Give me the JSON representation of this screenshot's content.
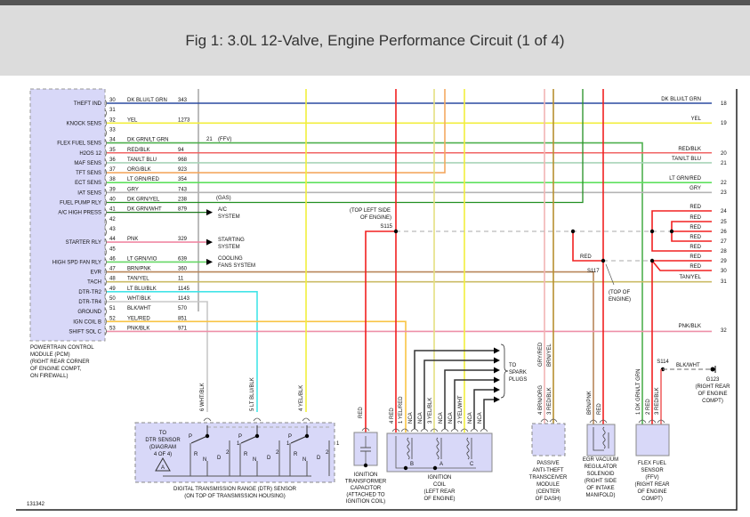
{
  "header": {
    "title": "Fig 1: 3.0L 12-Valve, Engine Performance Circuit (1 of 4)"
  },
  "figure_id": "131342",
  "pcm": {
    "name_lines": [
      "POWERTRAIN CONTROL",
      "MODULE (PCM)",
      "(RIGHT REAR CORNER",
      "OF ENGINE COMPT,",
      "ON FIREWALL)"
    ],
    "pins": [
      {
        "pin": "30",
        "function": "THEFT IND",
        "wire": "DK BLU/LT GRN",
        "circuit": "343",
        "hex": "#2a4aa0"
      },
      {
        "pin": "31",
        "function": "",
        "wire": "",
        "circuit": ""
      },
      {
        "pin": "32",
        "function": "KNOCK SENS",
        "wire": "YEL",
        "circuit": "1273",
        "hex": "#f2ee3c"
      },
      {
        "pin": "33",
        "function": "",
        "wire": "",
        "circuit": ""
      },
      {
        "pin": "34",
        "function": "FLEX FUEL SENS",
        "wire": "DK GRN/LT GRN",
        "circuit": "",
        "hex": "#4fb04f"
      },
      {
        "pin": "35",
        "function": "H2OS 12",
        "wire": "RED/BLK",
        "circuit": "94",
        "hex": "#f06464"
      },
      {
        "pin": "36",
        "function": "MAF SENS",
        "wire": "TAN/LT BLU",
        "circuit": "968",
        "hex": "#a8d4b8"
      },
      {
        "pin": "37",
        "function": "TFT SENS",
        "wire": "ORG/BLK",
        "circuit": "923",
        "hex": "#f4a860"
      },
      {
        "pin": "38",
        "function": "ECT SENS",
        "wire": "LT GRN/RED",
        "circuit": "354",
        "hex": "#5ee05e"
      },
      {
        "pin": "39",
        "function": "IAT SENS",
        "wire": "GRY",
        "circuit": "743",
        "hex": "#b4b4b4"
      },
      {
        "pin": "40",
        "function": "FUEL PUMP RLY",
        "wire": "DK GRN/YEL",
        "circuit": "238",
        "hex": "#229022"
      },
      {
        "pin": "41",
        "function": "A/C HIGH PRESS",
        "wire": "DK GRN/WHT",
        "circuit": "879",
        "hex": "#1e7a1e"
      },
      {
        "pin": "42",
        "function": "",
        "wire": "",
        "circuit": ""
      },
      {
        "pin": "43",
        "function": "",
        "wire": "",
        "circuit": ""
      },
      {
        "pin": "44",
        "function": "STARTER RLY",
        "wire": "PNK",
        "circuit": "329",
        "hex": "#f088a4"
      },
      {
        "pin": "45",
        "function": "",
        "wire": "",
        "circuit": ""
      },
      {
        "pin": "46",
        "function": "HIGH SPD FAN RLY",
        "wire": "LT GRN/VIO",
        "circuit": "639",
        "hex": "#66d866"
      },
      {
        "pin": "47",
        "function": "EVR",
        "wire": "BRN/PNK",
        "circuit": "360",
        "hex": "#b8865a"
      },
      {
        "pin": "48",
        "function": "TACH",
        "wire": "TAN/YEL",
        "circuit": "11",
        "hex": "#cbbb66"
      },
      {
        "pin": "49",
        "function": "DTR-TR2",
        "wire": "LT BLU/BLK",
        "circuit": "1145",
        "hex": "#44e4e8"
      },
      {
        "pin": "50",
        "function": "DTR-TR4",
        "wire": "WHT/BLK",
        "circuit": "1143",
        "hex": "#c8c8c8"
      },
      {
        "pin": "51",
        "function": "GROUND",
        "wire": "BLK/WHT",
        "circuit": "570"
      },
      {
        "pin": "52",
        "function": "IGN COIL B",
        "wire": "YEL/RED",
        "circuit": "851",
        "hex": "#f8c444"
      },
      {
        "pin": "53",
        "function": "SHIFT SOL C",
        "wire": "PNK/BLK",
        "circuit": "971",
        "hex": "#ee90a8"
      }
    ],
    "annotations": {
      "ffv_num": "21",
      "ffv": "(FFV)",
      "gas": "(GAS)"
    },
    "destinations": {
      "ac": [
        "A/C",
        "SYSTEM"
      ],
      "starting": [
        "STARTING",
        "SYSTEM"
      ],
      "cooling": [
        "COOLING",
        "FANS SYSTEM"
      ]
    }
  },
  "right_terminals": [
    {
      "num": "18",
      "wire": "DK BLU/LT GRN"
    },
    {
      "num": "19",
      "wire": "YEL"
    },
    {
      "num": "20",
      "wire": "RED/BLK"
    },
    {
      "num": "21",
      "wire": "TAN/LT BLU"
    },
    {
      "num": "22",
      "wire": "LT GRN/RED"
    },
    {
      "num": "23",
      "wire": "GRY"
    },
    {
      "num": "24",
      "wire": "RED"
    },
    {
      "num": "25",
      "wire": "RED"
    },
    {
      "num": "26",
      "wire": "RED"
    },
    {
      "num": "27",
      "wire": "RED"
    },
    {
      "num": "28",
      "wire": "RED"
    },
    {
      "num": "29",
      "wire": "RED"
    },
    {
      "num": "30",
      "wire": "RED"
    },
    {
      "num": "31",
      "wire": "TAN/YEL"
    },
    {
      "num": "32",
      "wire": "PNK/BLK"
    }
  ],
  "splices": {
    "s115": {
      "id": "S115",
      "location": [
        "(TOP LEFT SIDE",
        "OF ENGINE)"
      ]
    },
    "s117": {
      "id": "S117",
      "wire": "RED",
      "location": [
        "(TOP OF",
        "ENGINE)"
      ]
    },
    "s114": {
      "id": "S114",
      "wire": "BLK/WHT"
    },
    "g123": {
      "id": "G123",
      "location": [
        "(RIGHT REAR",
        "OF ENGINE",
        "COMPT)"
      ]
    }
  },
  "dtr": {
    "wires": [
      "6  WHT/BLK",
      "5  LT BLU/BLK",
      "4  YEL/BLK"
    ],
    "inner": [
      "TO",
      "DTR SENSOR",
      "(DIAGRAM",
      "4 OF 4)"
    ],
    "ref": "A",
    "positions": [
      "P",
      "R",
      "N",
      "D",
      "2",
      "1"
    ],
    "name_lines": [
      "DIGITAL TRANSMISSION RANGE (DTR) SENSOR",
      "(ON TOP OF TRANSMISSION HOUSING)"
    ]
  },
  "capacitor": {
    "wire": "RED",
    "name_lines": [
      "IGNITION",
      "TRANSFORMER",
      "CAPACITOR",
      "(ATTACHED TO",
      "IGNITION COIL)"
    ]
  },
  "coil": {
    "wires": [
      "4  RED",
      "1  YEL/RED",
      "NCA",
      "NCA",
      "3  YEL/BLK",
      "NCA",
      "NCA",
      "2  YEL/WHT",
      "NCA",
      "NCA"
    ],
    "coils": [
      "B",
      "A",
      "C"
    ],
    "name_lines": [
      "IGNITION",
      "COIL",
      "(LEFT REAR",
      "OF ENGINE)"
    ],
    "spark": [
      "TO",
      "SPARK",
      "PLUGS"
    ]
  },
  "pats": {
    "wires_upper": [
      "GRY/RED",
      "BRN/YEL"
    ],
    "wires_lower": [
      "4  BRN/ORG",
      "3  RED/BLK"
    ],
    "name_lines": [
      "PASSIVE",
      "ANTI-THEFT",
      "TRANSCEIVER",
      "MODULE",
      "(CENTER",
      "OF DASH)"
    ]
  },
  "egr": {
    "wires": [
      "BRN/PNK",
      "RED"
    ],
    "name_lines": [
      "EGR VACUUM",
      "REGULATOR",
      "SOLENOID",
      "(RIGHT SIDE",
      "OF INTAKE",
      "MANIFOLD)"
    ]
  },
  "ffv": {
    "wires": [
      "1  DK GRN/LT GRN",
      "2  RED",
      "3  RED/BLK"
    ],
    "name_lines": [
      "FLEX FUEL",
      "SENSOR",
      "(FFV)",
      "(RIGHT REAR",
      "OF ENGINE",
      "COMPT)"
    ]
  },
  "colors": {
    "red": "#f22020",
    "component_fill": "#d8d8f8",
    "header_bg": "#dcdcdc"
  }
}
